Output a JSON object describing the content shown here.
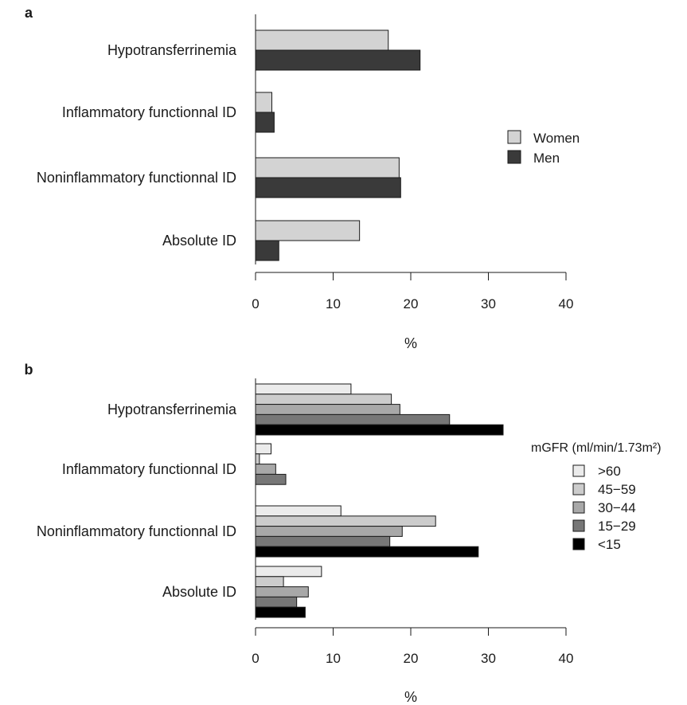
{
  "chart_data": [
    {
      "type": "bar",
      "orientation": "horizontal",
      "panel_label": "a",
      "categories": [
        "Hypotransferrinemia",
        "Inflammatory functionnal ID",
        "Noninflammatory functionnal ID",
        "Absolute ID"
      ],
      "series": [
        {
          "name": "Women",
          "color": "#d3d3d3",
          "values": [
            17.1,
            2.1,
            18.5,
            13.4
          ]
        },
        {
          "name": "Men",
          "color": "#3a3a3a",
          "values": [
            21.2,
            2.4,
            18.7,
            3.0
          ]
        }
      ],
      "xlabel": "%",
      "xlim": [
        0,
        40
      ],
      "xticks": [
        "0",
        "10",
        "20",
        "30",
        "40"
      ],
      "legend": {
        "title": "",
        "position": "right"
      },
      "grid": false
    },
    {
      "type": "bar",
      "orientation": "horizontal",
      "panel_label": "b",
      "categories": [
        "Hypotransferrinemia",
        "Inflammatory functionnal ID",
        "Noninflammatory functionnal ID",
        "Absolute ID"
      ],
      "series": [
        {
          "name": ">60",
          "color": "#ebebeb",
          "values": [
            12.3,
            2.0,
            11.0,
            8.5
          ]
        },
        {
          "name": "45−59",
          "color": "#cccccc",
          "values": [
            17.5,
            0.5,
            23.2,
            3.6
          ]
        },
        {
          "name": "30−44",
          "color": "#a8a8a8",
          "values": [
            18.6,
            2.6,
            18.9,
            6.8
          ]
        },
        {
          "name": "15−29",
          "color": "#777777",
          "values": [
            25.0,
            3.9,
            17.3,
            5.3
          ]
        },
        {
          "name": "<15",
          "color": "#000000",
          "values": [
            31.9,
            0,
            28.7,
            6.4
          ]
        }
      ],
      "xlabel": "%",
      "xlim": [
        0,
        40
      ],
      "xticks": [
        "0",
        "10",
        "20",
        "30",
        "40"
      ],
      "legend": {
        "title": "mGFR (ml/min/1.73m²)",
        "position": "right"
      },
      "grid": false
    }
  ]
}
